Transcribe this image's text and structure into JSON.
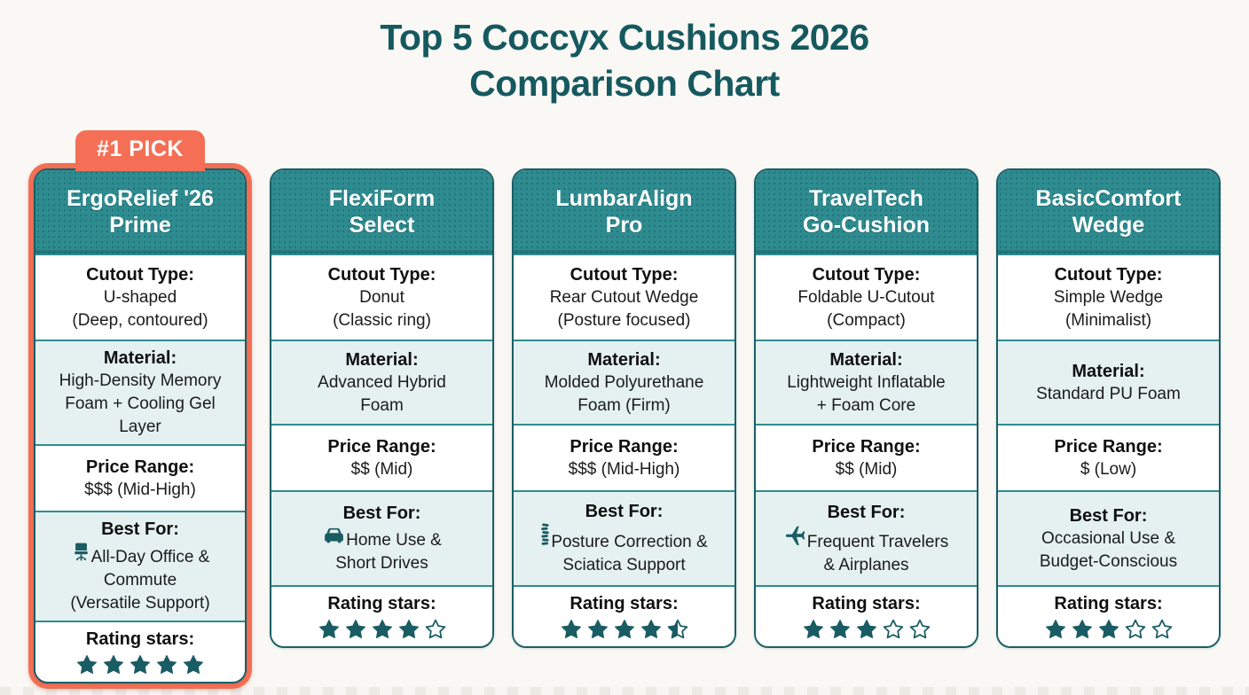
{
  "page": {
    "title_line1": "Top 5 Coccyx Cushions 2026",
    "title_line2": "Comparison Chart"
  },
  "colors": {
    "teal_header": "#2E8C90",
    "teal_dark": "#1A5F66",
    "row_light": "#E4F1F0",
    "row_white": "#FFFFFF",
    "coral_accent": "#F46F55",
    "star_teal": "#1A5C64",
    "title_teal": "#15595F"
  },
  "labels": {
    "cutout": "Cutout Type:",
    "material": "Material:",
    "price": "Price Range:",
    "best_for": "Best For:",
    "rating": "Rating stars:"
  },
  "chart_data": {
    "type": "table",
    "title": "Top 5 Coccyx Cushions 2026 Comparison Chart",
    "row_headers": [
      "Cutout Type",
      "Material",
      "Price Range",
      "Best For",
      "Rating stars"
    ],
    "max_rating": 5,
    "products": [
      {
        "name_lines": [
          "ErgoRelief '26",
          "Prime"
        ],
        "badge": "#1 PICK",
        "highlight": true,
        "cutout_type": [
          "U-shaped",
          "(Deep, contoured)"
        ],
        "material": [
          "High-Density Memory",
          "Foam + Cooling Gel Layer"
        ],
        "price_range": "$$$ (Mid-High)",
        "best_for_icon": "office-chair-icon",
        "best_for": [
          "All-Day Office &",
          "Commute",
          "(Versatile Support)"
        ],
        "rating": 5
      },
      {
        "name_lines": [
          "FlexiForm",
          "Select"
        ],
        "badge": null,
        "highlight": false,
        "cutout_type": [
          "Donut",
          "(Classic ring)"
        ],
        "material": [
          "Advanced Hybrid",
          "Foam"
        ],
        "price_range": "$$ (Mid)",
        "best_for_icon": "car-icon",
        "best_for": [
          "Home Use &",
          "Short Drives"
        ],
        "rating": 4
      },
      {
        "name_lines": [
          "LumbarAlign",
          "Pro"
        ],
        "badge": null,
        "highlight": false,
        "cutout_type": [
          "Rear Cutout Wedge",
          "(Posture focused)"
        ],
        "material": [
          "Molded Polyurethane",
          "Foam (Firm)"
        ],
        "price_range": "$$$ (Mid-High)",
        "best_for_icon": "spine-icon",
        "best_for": [
          "Posture Correction &",
          "Sciatica Support"
        ],
        "rating": 4.5
      },
      {
        "name_lines": [
          "TravelTech",
          "Go-Cushion"
        ],
        "badge": null,
        "highlight": false,
        "cutout_type": [
          "Foldable U-Cutout",
          "(Compact)"
        ],
        "material": [
          "Lightweight Inflatable",
          "+ Foam Core"
        ],
        "price_range": "$$ (Mid)",
        "best_for_icon": "airplane-icon",
        "best_for": [
          "Frequent Travelers",
          "& Airplanes"
        ],
        "rating": 3
      },
      {
        "name_lines": [
          "BasicComfort",
          "Wedge"
        ],
        "badge": null,
        "highlight": false,
        "cutout_type": [
          "Simple Wedge",
          "(Minimalist)"
        ],
        "material": [
          "Standard PU Foam"
        ],
        "price_range": "$ (Low)",
        "best_for_icon": null,
        "best_for": [
          "Occasional Use &",
          "Budget-Conscious"
        ],
        "rating": 3
      }
    ]
  }
}
